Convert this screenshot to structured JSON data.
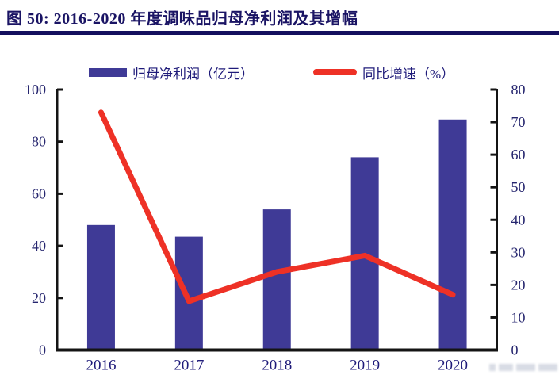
{
  "header": {
    "title": "图 50: 2016-2020 年度调味品归母净利润及其增幅",
    "accent_color": "#14105e"
  },
  "legend": {
    "items": [
      {
        "label": "归母净利润（亿元）",
        "marker": "bar-swatch",
        "color": "#3f3a96"
      },
      {
        "label": "同比增速（%）",
        "marker": "line-swatch",
        "color": "#ee3126"
      }
    ]
  },
  "chart_data": {
    "type": "bar+line",
    "title": "2016-2020 年度调味品归母净利润及其增幅",
    "categories": [
      "2016",
      "2017",
      "2018",
      "2019",
      "2020"
    ],
    "series": [
      {
        "name": "归母净利润（亿元）",
        "type": "bar",
        "axis": "left",
        "values": [
          48,
          43.5,
          54,
          74,
          88.5
        ],
        "color": "#3f3a96"
      },
      {
        "name": "同比增速（%）",
        "type": "line",
        "axis": "right",
        "values": [
          73,
          15,
          24,
          29,
          17
        ],
        "color": "#ee3126"
      }
    ],
    "left_axis": {
      "label": "",
      "min": 0,
      "max": 100,
      "ticks": [
        0,
        20,
        40,
        60,
        80,
        100
      ]
    },
    "right_axis": {
      "label": "",
      "min": 0,
      "max": 80,
      "ticks": [
        0,
        10,
        20,
        30,
        40,
        50,
        60,
        70,
        80
      ]
    },
    "grid": false,
    "legend_position": "top",
    "axis_color": "#141414"
  }
}
